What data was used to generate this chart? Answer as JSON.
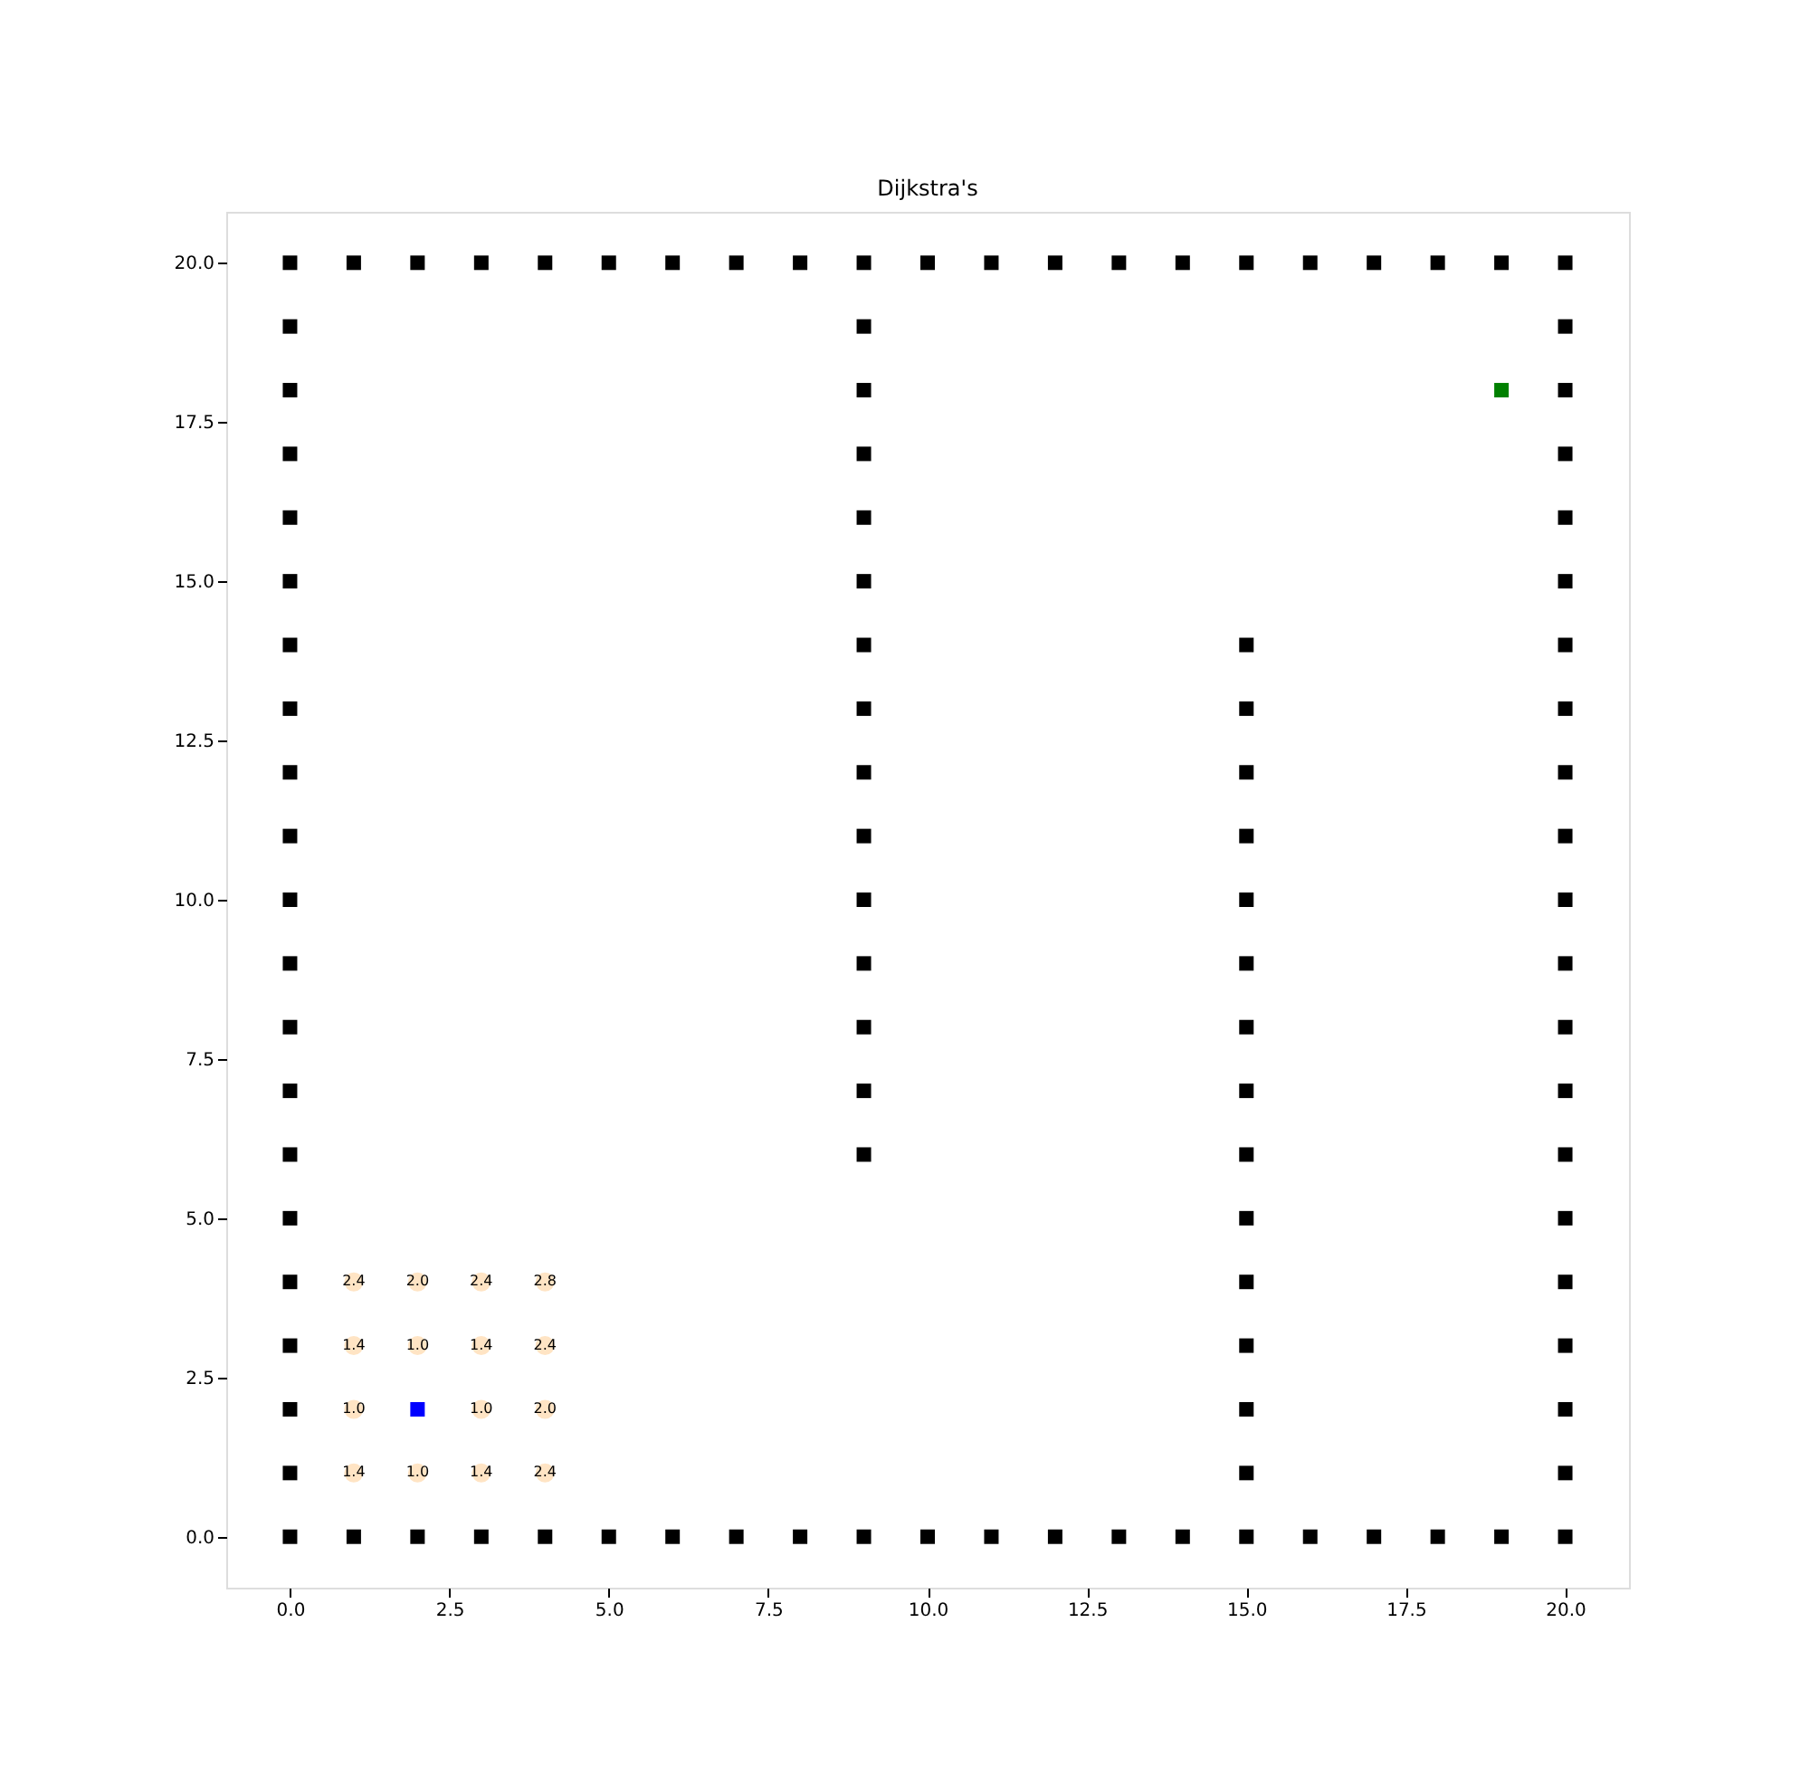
{
  "chart_data": {
    "type": "scatter",
    "title": "Dijkstra's",
    "xlim": [
      -1.0,
      21.0
    ],
    "ylim": [
      -0.8,
      20.8
    ],
    "xticks": [
      {
        "value": 0,
        "label": "0.0"
      },
      {
        "value": 2.5,
        "label": "2.5"
      },
      {
        "value": 5,
        "label": "5.0"
      },
      {
        "value": 7.5,
        "label": "7.5"
      },
      {
        "value": 10,
        "label": "10.0"
      },
      {
        "value": 12.5,
        "label": "12.5"
      },
      {
        "value": 15,
        "label": "15.0"
      },
      {
        "value": 17.5,
        "label": "17.5"
      },
      {
        "value": 20,
        "label": "20.0"
      }
    ],
    "yticks": [
      {
        "value": 0,
        "label": "0.0"
      },
      {
        "value": 2.5,
        "label": "2.5"
      },
      {
        "value": 5,
        "label": "5.0"
      },
      {
        "value": 7.5,
        "label": "7.5"
      },
      {
        "value": 10,
        "label": "10.0"
      },
      {
        "value": 12.5,
        "label": "12.5"
      },
      {
        "value": 15,
        "label": "15.0"
      },
      {
        "value": 17.5,
        "label": "17.5"
      },
      {
        "value": 20,
        "label": "20.0"
      }
    ],
    "grid": false,
    "series": [
      {
        "color": "#000000",
        "marker": "square",
        "x": [
          0,
          1,
          2,
          3,
          4,
          5,
          6,
          7,
          8,
          9,
          10,
          11,
          12,
          13,
          14,
          15,
          16,
          17,
          18,
          19,
          20,
          0,
          1,
          2,
          3,
          4,
          5,
          6,
          7,
          8,
          9,
          10,
          11,
          12,
          13,
          14,
          15,
          16,
          17,
          18,
          19,
          20,
          0,
          0,
          0,
          0,
          0,
          0,
          0,
          0,
          0,
          0,
          0,
          0,
          0,
          0,
          0,
          0,
          0,
          0,
          0,
          20,
          20,
          20,
          20,
          20,
          20,
          20,
          20,
          20,
          20,
          20,
          20,
          20,
          20,
          20,
          20,
          20,
          20,
          20,
          9,
          9,
          9,
          9,
          9,
          9,
          9,
          9,
          9,
          9,
          9,
          9,
          9,
          9,
          15,
          15,
          15,
          15,
          15,
          15,
          15,
          15,
          15,
          15,
          15,
          15,
          15,
          15
        ],
        "values": [
          0,
          0,
          0,
          0,
          0,
          0,
          0,
          0,
          0,
          0,
          0,
          0,
          0,
          0,
          0,
          0,
          0,
          0,
          0,
          0,
          0,
          20,
          20,
          20,
          20,
          20,
          20,
          20,
          20,
          20,
          20,
          20,
          20,
          20,
          20,
          20,
          20,
          20,
          20,
          20,
          20,
          20,
          1,
          2,
          3,
          4,
          5,
          6,
          7,
          8,
          9,
          10,
          11,
          12,
          13,
          14,
          15,
          16,
          17,
          18,
          19,
          1,
          2,
          3,
          4,
          5,
          6,
          7,
          8,
          9,
          10,
          11,
          12,
          13,
          14,
          15,
          16,
          17,
          18,
          19,
          6,
          7,
          8,
          9,
          10,
          11,
          12,
          13,
          14,
          15,
          16,
          17,
          18,
          19,
          1,
          2,
          3,
          4,
          5,
          6,
          7,
          8,
          9,
          10,
          11,
          12,
          13,
          14
        ]
      },
      {
        "color": "#ffe4c4",
        "marker": "circle",
        "x": [
          1,
          2,
          3,
          4,
          1,
          2,
          3,
          4,
          1,
          3,
          4,
          1,
          2,
          3,
          4
        ],
        "values": [
          4,
          4,
          4,
          4,
          3,
          3,
          3,
          3,
          2,
          2,
          2,
          1,
          1,
          1,
          1
        ]
      },
      {
        "color": "#0000ff",
        "marker": "square",
        "x": [
          2
        ],
        "values": [
          2
        ]
      },
      {
        "color": "#008000",
        "marker": "square",
        "x": [
          19
        ],
        "values": [
          18
        ]
      }
    ],
    "annotations": [
      {
        "text": "2.4",
        "x": 1,
        "y": 4
      },
      {
        "text": "2.0",
        "x": 2,
        "y": 4
      },
      {
        "text": "2.4",
        "x": 3,
        "y": 4
      },
      {
        "text": "2.8",
        "x": 4,
        "y": 4
      },
      {
        "text": "1.4",
        "x": 1,
        "y": 3
      },
      {
        "text": "1.0",
        "x": 2,
        "y": 3
      },
      {
        "text": "1.4",
        "x": 3,
        "y": 3
      },
      {
        "text": "2.4",
        "x": 4,
        "y": 3
      },
      {
        "text": "1.0",
        "x": 1,
        "y": 2
      },
      {
        "text": "1.0",
        "x": 3,
        "y": 2
      },
      {
        "text": "2.0",
        "x": 4,
        "y": 2
      },
      {
        "text": "1.4",
        "x": 1,
        "y": 1
      },
      {
        "text": "1.0",
        "x": 2,
        "y": 1
      },
      {
        "text": "1.4",
        "x": 3,
        "y": 1
      },
      {
        "text": "2.4",
        "x": 4,
        "y": 1
      }
    ]
  }
}
